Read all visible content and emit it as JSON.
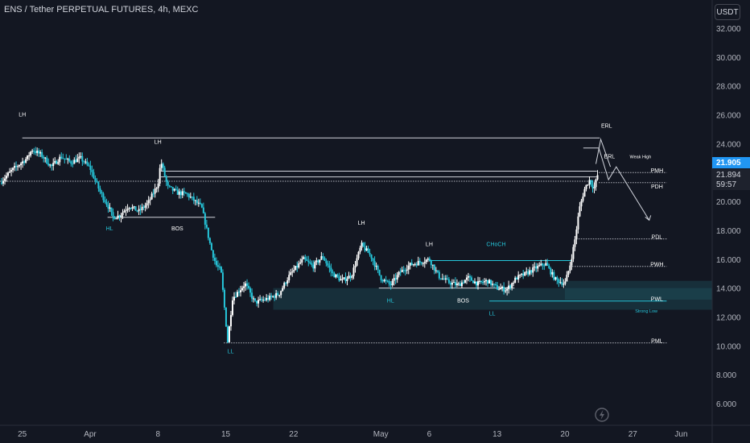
{
  "header": {
    "title": "ENS / Tether PERPETUAL FUTURES, 4h, MEXC",
    "unit_button": "USDT"
  },
  "price_tags": {
    "last": "21.905",
    "bid": "21.894",
    "countdown": "59:57"
  },
  "colors": {
    "background": "#131722",
    "up": "#ffffff",
    "down": "#26c6da",
    "axis_text": "#b2b5be",
    "zone": "#1f5c66",
    "accent": "#2196f3"
  },
  "chart_data": {
    "type": "candlestick",
    "title": "ENS / Tether PERPETUAL FUTURES, 4h, MEXC",
    "ylim": [
      4.6,
      33.5
    ],
    "y_ticks": [
      "32.000",
      "30.000",
      "28.000",
      "26.000",
      "24.000",
      "22.000",
      "20.000",
      "18.000",
      "16.000",
      "14.000",
      "12.000",
      "10.000",
      "8.000",
      "6.000"
    ],
    "y_tick_values": [
      32,
      30,
      28,
      26,
      24,
      22,
      20,
      18,
      16,
      14,
      12,
      10,
      8,
      6
    ],
    "x_ticks": [
      {
        "label": "25",
        "day": 0
      },
      {
        "label": "Apr",
        "day": 7
      },
      {
        "label": "8",
        "day": 14
      },
      {
        "label": "15",
        "day": 21
      },
      {
        "label": "22",
        "day": 28
      },
      {
        "label": "May",
        "day": 37
      },
      {
        "label": "6",
        "day": 42
      },
      {
        "label": "13",
        "day": 49
      },
      {
        "label": "20",
        "day": 56
      },
      {
        "label": "27",
        "day": 63
      },
      {
        "label": "Jun",
        "day": 68
      }
    ],
    "x_range_days": [
      -2.3,
      71.2
    ],
    "price_path": [
      [
        -2.3,
        21.3
      ],
      [
        -1.0,
        22.2
      ],
      [
        0.5,
        23.0
      ],
      [
        1.0,
        23.6
      ],
      [
        2.0,
        23.2
      ],
      [
        3.0,
        22.4
      ],
      [
        4.0,
        23.1
      ],
      [
        5.0,
        22.7
      ],
      [
        6.0,
        23.0
      ],
      [
        7.0,
        22.3
      ],
      [
        8.0,
        20.7
      ],
      [
        9.0,
        19.5
      ],
      [
        9.3,
        18.9
      ],
      [
        10.0,
        19.0
      ],
      [
        11.0,
        19.7
      ],
      [
        12.0,
        19.3
      ],
      [
        13.0,
        19.9
      ],
      [
        14.0,
        21.2
      ],
      [
        14.3,
        22.8
      ],
      [
        15.0,
        21.0
      ],
      [
        16.0,
        20.6
      ],
      [
        17.0,
        20.5
      ],
      [
        18.5,
        19.6
      ],
      [
        19.5,
        16.7
      ],
      [
        20.0,
        15.6
      ],
      [
        20.5,
        15.2
      ],
      [
        21.2,
        10.3
      ],
      [
        21.7,
        13.3
      ],
      [
        23.0,
        14.3
      ],
      [
        24.0,
        13.0
      ],
      [
        25.5,
        13.3
      ],
      [
        26.5,
        13.6
      ],
      [
        27.5,
        14.8
      ],
      [
        29.0,
        16.0
      ],
      [
        30.0,
        15.5
      ],
      [
        31.0,
        16.2
      ],
      [
        32.0,
        15.0
      ],
      [
        33.0,
        14.5
      ],
      [
        34.0,
        14.9
      ],
      [
        35.0,
        17.0
      ],
      [
        36.0,
        16.2
      ],
      [
        37.0,
        14.7
      ],
      [
        38.0,
        14.2
      ],
      [
        39.0,
        15.1
      ],
      [
        40.0,
        15.6
      ],
      [
        41.0,
        15.8
      ],
      [
        42.0,
        16.0
      ],
      [
        43.0,
        14.8
      ],
      [
        44.0,
        14.4
      ],
      [
        45.0,
        14.2
      ],
      [
        46.0,
        14.7
      ],
      [
        47.0,
        14.3
      ],
      [
        48.0,
        14.5
      ],
      [
        49.0,
        14.0
      ],
      [
        50.0,
        13.9
      ],
      [
        51.0,
        14.7
      ],
      [
        52.0,
        15.0
      ],
      [
        53.0,
        15.4
      ],
      [
        54.0,
        15.7
      ],
      [
        55.0,
        14.6
      ],
      [
        56.0,
        14.3
      ],
      [
        56.5,
        15.5
      ],
      [
        57.0,
        17.2
      ],
      [
        57.5,
        19.5
      ],
      [
        58.0,
        20.8
      ],
      [
        58.5,
        21.5
      ],
      [
        59.0,
        20.9
      ],
      [
        59.4,
        21.9
      ]
    ],
    "levels": [
      {
        "type": "solid",
        "day0": 0,
        "day1": 59.6,
        "value": 24.4
      },
      {
        "type": "solid",
        "day0": 14.3,
        "day1": 59.3,
        "value": 22.1
      },
      {
        "type": "solid",
        "day0": 14.3,
        "day1": 59.3,
        "value": 21.7
      },
      {
        "type": "dotted",
        "day0": -2.3,
        "day1": 59.3,
        "value": 21.4
      },
      {
        "type": "dotted",
        "day0": 59.5,
        "day1": 66.5,
        "value": 22.0
      },
      {
        "type": "dotted",
        "day0": 59.5,
        "day1": 66.5,
        "value": 21.3
      },
      {
        "type": "dotted",
        "day0": 57.4,
        "day1": 66.5,
        "value": 17.4
      },
      {
        "type": "dotted",
        "day0": 56.5,
        "day1": 66.5,
        "value": 15.5
      },
      {
        "type": "dotted",
        "day0": 20.8,
        "day1": 66.5,
        "value": 10.2
      },
      {
        "type": "solid",
        "day0": 8.8,
        "day1": 19.9,
        "value": 18.9
      },
      {
        "type": "solid",
        "day0": 42.0,
        "day1": 56.6,
        "value": 15.9
      },
      {
        "type": "solid",
        "day0": 36.8,
        "day1": 50.8,
        "value": 14.0
      },
      {
        "type": "zone",
        "day0": 25.9,
        "day1": 71.2,
        "v_low": 12.5,
        "v_high": 14.0
      },
      {
        "type": "zone",
        "day0": 56.0,
        "day1": 71.2,
        "v_low": 13.2,
        "v_high": 14.5
      }
    ],
    "projection_path": [
      [
        57.9,
        23.7
      ],
      [
        59.5,
        23.7
      ],
      [
        60.5,
        21.5
      ],
      [
        61.3,
        22.4
      ],
      [
        64.7,
        18.7
      ]
    ],
    "erl_path": [
      [
        59.2,
        22.6
      ],
      [
        59.7,
        24.3
      ],
      [
        60.7,
        22.4
      ]
    ],
    "labels": [
      {
        "text": "LH",
        "day": 0,
        "value": 25.9,
        "color": "#ffffff"
      },
      {
        "text": "LH",
        "day": 14.0,
        "value": 24.0,
        "color": "#ffffff"
      },
      {
        "text": "HL",
        "day": 9.0,
        "value": 18.0,
        "color": "#26c6da"
      },
      {
        "text": "BOS",
        "day": 16.0,
        "value": 18.0,
        "color": "#ffffff"
      },
      {
        "text": "LL",
        "day": 21.5,
        "value": 9.5,
        "color": "#26c6da"
      },
      {
        "text": "LH",
        "day": 35.0,
        "value": 18.4,
        "color": "#ffffff"
      },
      {
        "text": "LH",
        "day": 42.0,
        "value": 16.9,
        "color": "#ffffff"
      },
      {
        "text": "CHoCH",
        "day": 48.9,
        "value": 16.9,
        "color": "#26c6da"
      },
      {
        "text": "HL",
        "day": 38.0,
        "value": 13.0,
        "color": "#26c6da"
      },
      {
        "text": "BOS",
        "day": 45.5,
        "value": 13.0,
        "color": "#ffffff"
      },
      {
        "text": "LL",
        "day": 48.5,
        "value": 12.1,
        "color": "#26c6da"
      },
      {
        "text": "ERL",
        "day": 60.3,
        "value": 25.1,
        "color": "#ffffff"
      },
      {
        "text": "ERL",
        "day": 60.6,
        "value": 23.0,
        "color": "#ffffff"
      },
      {
        "text": "Weak High",
        "day": 63.8,
        "value": 23.0,
        "color": "#ffffff",
        "small": true
      },
      {
        "text": "PMH",
        "day": 65.5,
        "value": 22.0,
        "color": "#ffffff"
      },
      {
        "text": "PDH",
        "day": 65.5,
        "value": 20.9,
        "color": "#ffffff"
      },
      {
        "text": "PDL",
        "day": 65.5,
        "value": 17.4,
        "color": "#ffffff"
      },
      {
        "text": "PWH",
        "day": 65.5,
        "value": 15.5,
        "color": "#ffffff"
      },
      {
        "text": "PWL",
        "day": 65.5,
        "value": 13.1,
        "color": "#ffffff"
      },
      {
        "text": "Strong Low",
        "day": 64.4,
        "value": 12.3,
        "color": "#26c6da",
        "small": true
      },
      {
        "text": "PML",
        "day": 65.5,
        "value": 10.2,
        "color": "#ffffff"
      }
    ]
  }
}
